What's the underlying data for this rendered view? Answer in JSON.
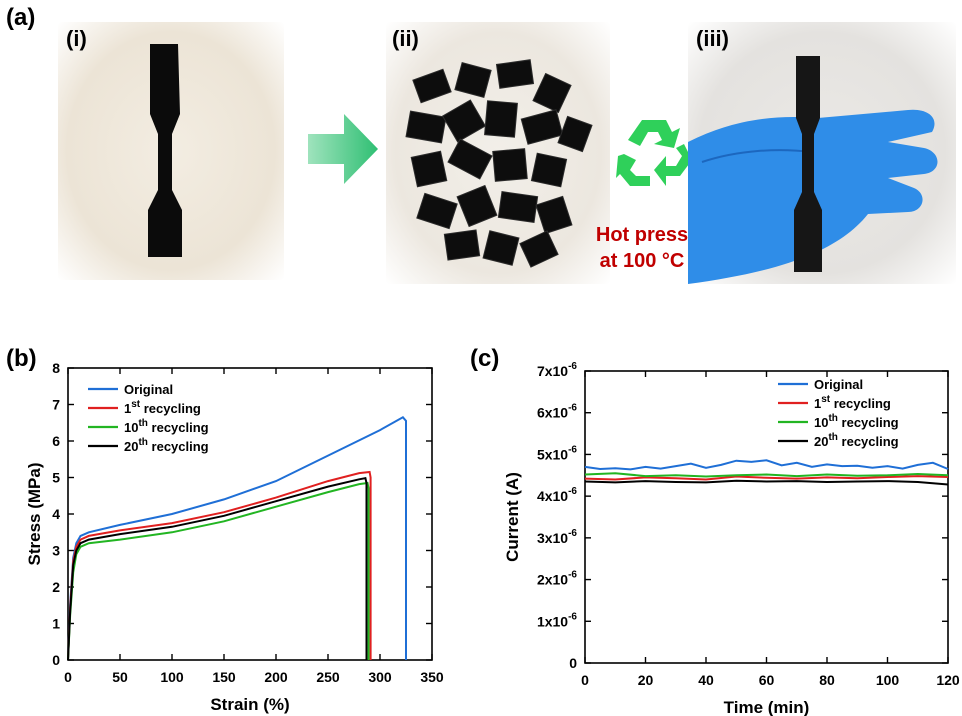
{
  "panel_a": {
    "label": "(a)",
    "sub_labels": [
      "(i)",
      "(ii)",
      "(iii)"
    ],
    "hot_press_line1": "Hot press",
    "hot_press_line2": "at 100 °C"
  },
  "panel_b": {
    "label": "(b)"
  },
  "panel_c": {
    "label": "(c)"
  },
  "chart_data": [
    {
      "type": "line",
      "title": "",
      "xlabel": "Strain (%)",
      "ylabel": "Stress (MPa)",
      "xlim": [
        0,
        350
      ],
      "ylim": [
        0,
        8
      ],
      "xticks": [
        0,
        50,
        100,
        150,
        200,
        250,
        300,
        350
      ],
      "yticks": [
        0,
        1,
        2,
        3,
        4,
        5,
        6,
        7,
        8
      ],
      "legend_position": "top-left",
      "series": [
        {
          "name": "Original",
          "label_base": "Original",
          "label_sup": "",
          "label_rest": "",
          "color": "#1f6fd6",
          "x": [
            0,
            2,
            5,
            8,
            12,
            20,
            50,
            100,
            150,
            200,
            250,
            300,
            322,
            325,
            325
          ],
          "y": [
            0,
            1.5,
            2.8,
            3.2,
            3.4,
            3.5,
            3.7,
            4.0,
            4.4,
            4.9,
            5.6,
            6.3,
            6.65,
            6.55,
            0
          ]
        },
        {
          "name": "1st recycling",
          "label_base": "1",
          "label_sup": "st",
          "label_rest": " recycling",
          "color": "#e02020",
          "x": [
            0,
            2,
            5,
            8,
            12,
            20,
            50,
            100,
            150,
            200,
            250,
            280,
            290,
            291,
            291
          ],
          "y": [
            0,
            1.4,
            2.7,
            3.1,
            3.3,
            3.4,
            3.55,
            3.75,
            4.05,
            4.45,
            4.9,
            5.12,
            5.15,
            5.0,
            0
          ]
        },
        {
          "name": "10th recycling",
          "label_base": "10",
          "label_sup": "th",
          "label_rest": " recycling",
          "color": "#22b522",
          "x": [
            0,
            2,
            5,
            8,
            12,
            20,
            50,
            100,
            150,
            200,
            250,
            280,
            288,
            289,
            289
          ],
          "y": [
            0,
            1.2,
            2.4,
            2.9,
            3.1,
            3.2,
            3.3,
            3.5,
            3.8,
            4.2,
            4.6,
            4.82,
            4.85,
            4.7,
            0
          ]
        },
        {
          "name": "20th recycling",
          "label_base": "20",
          "label_sup": "th",
          "label_rest": " recycling",
          "color": "#000000",
          "x": [
            0,
            2,
            5,
            8,
            12,
            20,
            50,
            100,
            150,
            200,
            250,
            280,
            286,
            287,
            287
          ],
          "y": [
            0,
            1.3,
            2.6,
            3.0,
            3.2,
            3.3,
            3.45,
            3.65,
            3.95,
            4.35,
            4.75,
            4.95,
            4.98,
            4.85,
            0
          ]
        }
      ]
    },
    {
      "type": "line",
      "title": "",
      "xlabel": "Time (min)",
      "ylabel": "Current (A)",
      "xlim": [
        0,
        120
      ],
      "ylim": [
        0,
        7e-06
      ],
      "xticks": [
        0,
        20,
        40,
        60,
        80,
        100,
        120
      ],
      "ytick_labels": [
        {
          "v": 0,
          "base": "0",
          "exp": ""
        },
        {
          "v": 1e-06,
          "base": "1x10",
          "exp": "-6"
        },
        {
          "v": 2e-06,
          "base": "2x10",
          "exp": "-6"
        },
        {
          "v": 3e-06,
          "base": "3x10",
          "exp": "-6"
        },
        {
          "v": 4e-06,
          "base": "4x10",
          "exp": "-6"
        },
        {
          "v": 5e-06,
          "base": "5x10",
          "exp": "-6"
        },
        {
          "v": 6e-06,
          "base": "6x10",
          "exp": "-6"
        },
        {
          "v": 7e-06,
          "base": "7x10",
          "exp": "-6"
        }
      ],
      "legend_position": "top-right",
      "series": [
        {
          "name": "Original",
          "label_base": "Original",
          "label_sup": "",
          "label_rest": "",
          "color": "#1f6fd6",
          "x": [
            0,
            5,
            10,
            15,
            20,
            25,
            30,
            35,
            40,
            45,
            50,
            55,
            60,
            65,
            70,
            75,
            80,
            85,
            90,
            95,
            100,
            105,
            110,
            115,
            120
          ],
          "y": [
            4.7e-06,
            4.65e-06,
            4.67e-06,
            4.64e-06,
            4.7e-06,
            4.66e-06,
            4.72e-06,
            4.78e-06,
            4.68e-06,
            4.75e-06,
            4.85e-06,
            4.82e-06,
            4.86e-06,
            4.74e-06,
            4.8e-06,
            4.7e-06,
            4.76e-06,
            4.72e-06,
            4.73e-06,
            4.68e-06,
            4.72e-06,
            4.66e-06,
            4.75e-06,
            4.8e-06,
            4.65e-06
          ]
        },
        {
          "name": "1st recycling",
          "label_base": "1",
          "label_sup": "st",
          "label_rest": " recycling",
          "color": "#e02020",
          "x": [
            0,
            10,
            20,
            30,
            40,
            50,
            60,
            70,
            80,
            90,
            100,
            110,
            120
          ],
          "y": [
            4.42e-06,
            4.4e-06,
            4.45e-06,
            4.43e-06,
            4.4e-06,
            4.47e-06,
            4.44e-06,
            4.42e-06,
            4.45e-06,
            4.43e-06,
            4.46e-06,
            4.48e-06,
            4.46e-06
          ]
        },
        {
          "name": "10th recycling",
          "label_base": "10",
          "label_sup": "th",
          "label_rest": " recycling",
          "color": "#22b522",
          "x": [
            0,
            10,
            20,
            30,
            40,
            50,
            60,
            70,
            80,
            90,
            100,
            110,
            120
          ],
          "y": [
            4.52e-06,
            4.55e-06,
            4.48e-06,
            4.5e-06,
            4.47e-06,
            4.5e-06,
            4.52e-06,
            4.48e-06,
            4.52e-06,
            4.49e-06,
            4.5e-06,
            4.53e-06,
            4.5e-06
          ]
        },
        {
          "name": "20th recycling",
          "label_base": "20",
          "label_sup": "th",
          "label_rest": " recycling",
          "color": "#000000",
          "x": [
            0,
            10,
            20,
            30,
            40,
            50,
            60,
            70,
            80,
            90,
            100,
            110,
            120
          ],
          "y": [
            4.35e-06,
            4.33e-06,
            4.36e-06,
            4.34e-06,
            4.33e-06,
            4.37e-06,
            4.35e-06,
            4.36e-06,
            4.34e-06,
            4.35e-06,
            4.36e-06,
            4.34e-06,
            4.28e-06
          ]
        }
      ]
    }
  ]
}
